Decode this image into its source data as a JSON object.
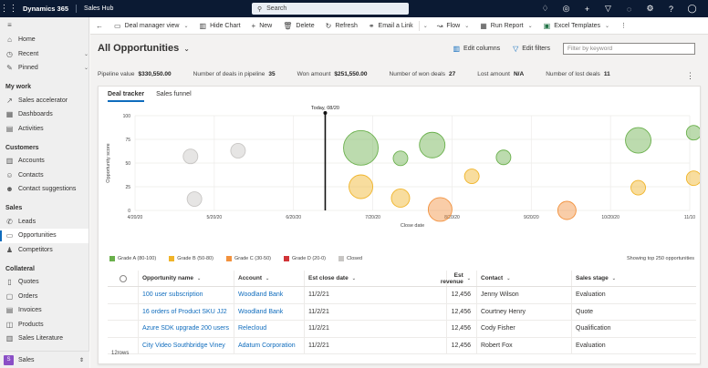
{
  "topbar": {
    "brand": "Dynamics 365",
    "app_name": "Sales Hub",
    "search_placeholder": "Search",
    "icons": [
      "lightbulb-icon",
      "target-icon",
      "add-icon",
      "filter-icon",
      "assistant-icon",
      "settings-icon",
      "help-icon",
      "user-icon"
    ]
  },
  "sidebar": {
    "top": [
      {
        "label": "Home",
        "icon": "home-icon"
      },
      {
        "label": "Recent",
        "icon": "clock-icon",
        "chevron": true
      },
      {
        "label": "Pinned",
        "icon": "pin-icon",
        "chevron": true
      }
    ],
    "groups": [
      {
        "title": "My work",
        "items": [
          {
            "label": "Sales accelerator"
          },
          {
            "label": "Dashboards"
          },
          {
            "label": "Activities"
          }
        ]
      },
      {
        "title": "Customers",
        "items": [
          {
            "label": "Accounts"
          },
          {
            "label": "Contacts"
          },
          {
            "label": "Contact suggestions"
          }
        ]
      },
      {
        "title": "Sales",
        "items": [
          {
            "label": "Leads"
          },
          {
            "label": "Opportunities",
            "selected": true
          },
          {
            "label": "Competitors"
          }
        ]
      },
      {
        "title": "Collateral",
        "items": [
          {
            "label": "Quotes"
          },
          {
            "label": "Orders"
          },
          {
            "label": "Invoices"
          },
          {
            "label": "Products"
          },
          {
            "label": "Sales Literature"
          }
        ]
      }
    ],
    "area": {
      "badge": "S",
      "label": "Sales"
    }
  },
  "commandbar": {
    "deal_manager_view": "Deal manager view",
    "hide_chart": "Hide Chart",
    "new": "New",
    "delete": "Delete",
    "refresh": "Refresh",
    "email_link": "Email a Link",
    "flow": "Flow",
    "run_report": "Run Report",
    "excel_templates": "Excel Templates"
  },
  "view": {
    "title": "All Opportunities",
    "edit_columns": "Edit columns",
    "edit_filters": "Edit filters",
    "filter_placeholder": "Filter by keyword"
  },
  "kpis": {
    "pipeline_value_label": "Pipeline value",
    "pipeline_value": "$330,550.00",
    "deals_in_pipeline_label": "Number of deals in pipeline",
    "deals_in_pipeline": "35",
    "won_amount_label": "Won amount",
    "won_amount": "$251,550.00",
    "won_deals_label": "Number of won deals",
    "won_deals": "27",
    "lost_amount_label": "Lost amount",
    "lost_amount": "N/A",
    "lost_deals_label": "Number of lost deals",
    "lost_deals": "11"
  },
  "tabs": [
    "Deal tracker",
    "Sales funnel"
  ],
  "chart_data": {
    "type": "scatter",
    "xlabel": "Close date",
    "ylabel": "Opportunity score",
    "ylim": [
      0,
      100
    ],
    "y_ticks": [
      0,
      25,
      50,
      75,
      100
    ],
    "x_ticks": [
      "4/20/20",
      "5/20/20",
      "6/20/20",
      "7/20/20",
      "8/20/20",
      "9/20/20",
      "10/20/20",
      "11/10"
    ],
    "today_label": "Today, 08/20",
    "today_x": 2.4,
    "legend": [
      {
        "name": "Grade A (80-100)",
        "color": "#6ab04c"
      },
      {
        "name": "Grade B (50-80)",
        "color": "#f0b429"
      },
      {
        "name": "Grade C (30-50)",
        "color": "#f2913d"
      },
      {
        "name": "Grade D (20-0)",
        "color": "#d13438"
      },
      {
        "name": "Closed",
        "color": "#c8c6c4"
      }
    ],
    "showing_text": "Showing top 250 opportunities",
    "series": [
      {
        "name": "Grade A (80-100)",
        "points": [
          {
            "x": 2.85,
            "y": 66,
            "r": 19
          },
          {
            "x": 3.35,
            "y": 55,
            "r": 8
          },
          {
            "x": 3.75,
            "y": 69,
            "r": 14
          },
          {
            "x": 4.65,
            "y": 56,
            "r": 8
          },
          {
            "x": 6.35,
            "y": 74,
            "r": 14
          },
          {
            "x": 7.05,
            "y": 82,
            "r": 8
          }
        ]
      },
      {
        "name": "Grade B (50-80)",
        "points": [
          {
            "x": 2.85,
            "y": 25,
            "r": 13
          },
          {
            "x": 3.35,
            "y": 13,
            "r": 10
          },
          {
            "x": 4.25,
            "y": 36,
            "r": 8
          },
          {
            "x": 6.35,
            "y": 24,
            "r": 8
          },
          {
            "x": 7.05,
            "y": 34,
            "r": 8
          }
        ]
      },
      {
        "name": "Grade C (30-50)",
        "points": [
          {
            "x": 3.85,
            "y": 1,
            "r": 13
          },
          {
            "x": 5.45,
            "y": 0,
            "r": 10
          }
        ]
      },
      {
        "name": "Closed",
        "points": [
          {
            "x": 0.7,
            "y": 57,
            "r": 8
          },
          {
            "x": 1.3,
            "y": 63,
            "r": 8
          },
          {
            "x": 0.75,
            "y": 12,
            "r": 8
          }
        ]
      }
    ]
  },
  "grid": {
    "columns": [
      "Opportunity name",
      "Account",
      "Est close date",
      "Est revenue",
      "Contact",
      "Sales stage"
    ],
    "rows": [
      [
        "100 user subscription",
        "Woodland Bank",
        "11/2/21",
        "12,456",
        "Jenny Wilson",
        "Evaluation"
      ],
      [
        "16 orders of Product SKU JJ2",
        "Woodland Bank",
        "11/2/21",
        "12,456",
        "Courtney Henry",
        "Quote"
      ],
      [
        "Azure SDK upgrade 200 users",
        "Relecloud",
        "11/2/21",
        "12,456",
        "Cody Fisher",
        "Qualification"
      ],
      [
        "City Video Southbridge Viney",
        "Adatum Corporation",
        "11/2/21",
        "12,456",
        "Robert Fox",
        "Evaluation"
      ]
    ],
    "row_count": "12rows"
  }
}
